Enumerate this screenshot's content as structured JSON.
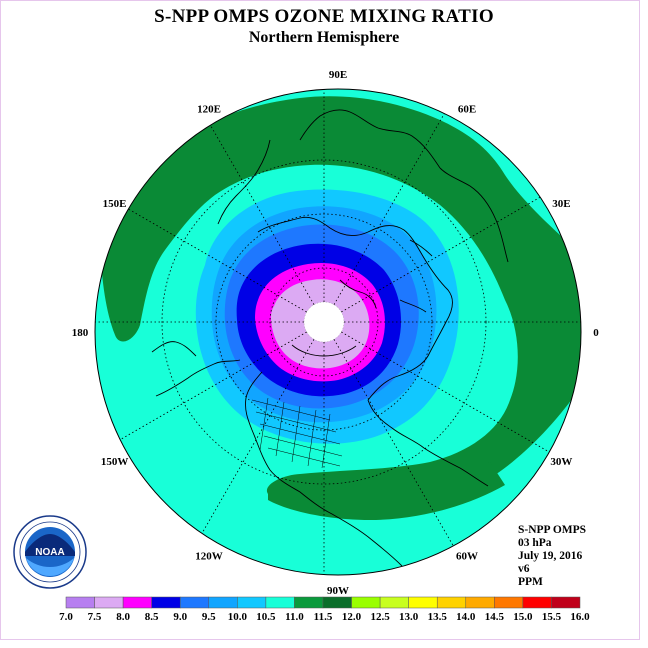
{
  "header": {
    "title": "S-NPP OMPS OZONE MIXING RATIO",
    "subtitle": "Northern Hemisphere"
  },
  "map": {
    "projection": "north polar stereographic",
    "longitude_labels": [
      "90E",
      "60E",
      "30E",
      "0",
      "30W",
      "60W",
      "90W",
      "120W",
      "150W",
      "180",
      "150E",
      "120E"
    ]
  },
  "info": {
    "instrument": "S-NPP OMPS",
    "pressure_level": "03 hPa",
    "date": "July 19, 2016",
    "version": "v6",
    "units": "PPM"
  },
  "colorbar": {
    "ticks": [
      "7.0",
      "7.5",
      "8.0",
      "8.5",
      "9.0",
      "9.5",
      "10.0",
      "10.5",
      "11.0",
      "11.5",
      "12.0",
      "12.5",
      "13.0",
      "13.5",
      "14.0",
      "14.5",
      "15.0",
      "15.5",
      "16.0"
    ],
    "colors": [
      "#b77ff0",
      "#dcaaf3",
      "#ff00ff",
      "#0000e6",
      "#1e78ff",
      "#11a5ff",
      "#11c8ff",
      "#18ffd8",
      "#0a9a3c",
      "#0a6e2a",
      "#9aff00",
      "#c8ff20",
      "#ffff00",
      "#ffd200",
      "#ffaa00",
      "#ff7800",
      "#ff0000",
      "#c0001a",
      "#7a4a2a"
    ]
  },
  "logo": {
    "text": "NOAA"
  }
}
